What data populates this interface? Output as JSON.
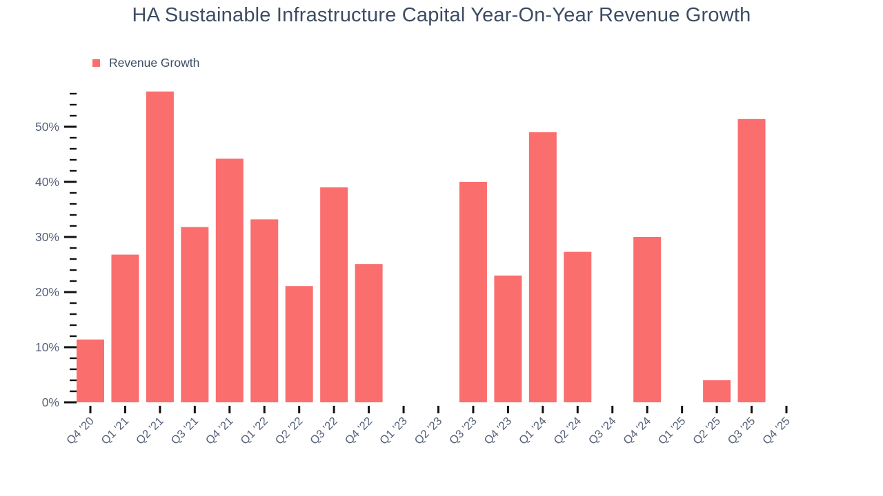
{
  "chart": {
    "title": "HA Sustainable Infrastructure Capital Year-On-Year Revenue Growth",
    "legend_label": "Revenue Growth"
  },
  "chart_data": {
    "type": "bar",
    "title": "HA Sustainable Infrastructure Capital Year-On-Year Revenue Growth",
    "legend_entries": [
      "Revenue Growth"
    ],
    "legend_position": "top-left",
    "categories": [
      "Q4 '20",
      "Q1 '21",
      "Q2 '21",
      "Q3 '21",
      "Q4 '21",
      "Q1 '22",
      "Q2 '22",
      "Q3 '22",
      "Q4 '22",
      "Q1 '23",
      "Q2 '23",
      "Q3 '23",
      "Q4 '23",
      "Q1 '24",
      "Q2 '24",
      "Q3 '24",
      "Q4 '24",
      "Q1 '25",
      "Q2 '25",
      "Q3 '25",
      "Q4 '25"
    ],
    "values": [
      11.4,
      26.8,
      56.4,
      31.8,
      44.2,
      33.2,
      21.1,
      39.0,
      25.1,
      null,
      null,
      40.0,
      23.0,
      49.0,
      27.3,
      null,
      30.0,
      null,
      4.0,
      51.4,
      null
    ],
    "unit": "%",
    "xlabel": "",
    "ylabel": "",
    "ylim": [
      0,
      56
    ],
    "ytick_labels": [
      "0%",
      "10%",
      "20%",
      "30%",
      "40%",
      "50%"
    ],
    "ytick_interval_major": 10,
    "ytick_interval_minor": 2,
    "grid": false,
    "bar_color": "#fa6e6e",
    "title_color": "#3d4c63",
    "axis_label_color": "#56627a",
    "tick_color": "#111111"
  }
}
